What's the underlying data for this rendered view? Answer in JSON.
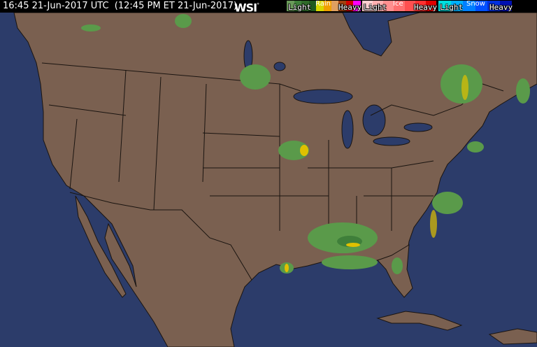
{
  "header": {
    "timestamp": "16:45 21-Jun-2017 UTC  (12:45 PM ET 21-Jun-2017)",
    "logo": "WSI",
    "logo_mark": "°"
  },
  "legend": {
    "rain": {
      "title": "Rain",
      "light": "Light",
      "heavy": "Heavy",
      "colors": [
        "#6a9a5a",
        "#3f7f3a",
        "#2f6a2a",
        "#1f5a1f",
        "#d8d800",
        "#f0a000",
        "#e0a060",
        "#a04010",
        "#d00000",
        "#ff00ff"
      ]
    },
    "ice": {
      "title": "Ice",
      "light": "Light",
      "heavy": "Heavy",
      "colors": [
        "#ffd0d0",
        "#ffb0b0",
        "#ff9090",
        "#ff7070",
        "#ff5050",
        "#ff3030",
        "#e00000"
      ]
    },
    "snow": {
      "title": "Snow",
      "light": "Light",
      "heavy": "Heavy",
      "colors": [
        "#00e0e0",
        "#00b0ff",
        "#0080ff",
        "#0050ff",
        "#0030e0",
        "#0010b0"
      ]
    }
  },
  "map": {
    "ocean_color": "#2c3c6a",
    "land_color": "#7a6050",
    "border_color": "#1a1410",
    "radar_light": "#5a9a4a",
    "radar_mid": "#3f7f3a",
    "radar_heavy": "#e0c000"
  }
}
